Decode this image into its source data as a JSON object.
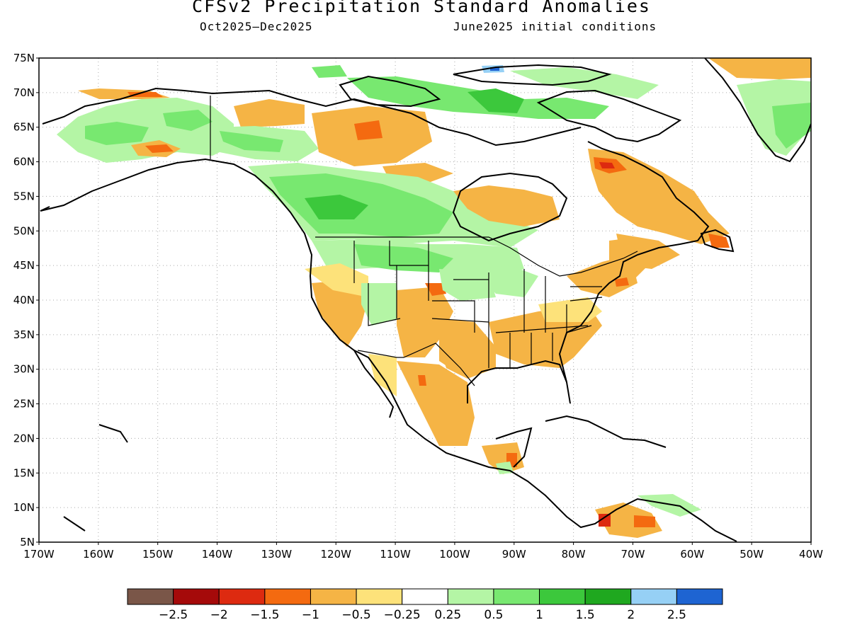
{
  "title": "CFSv2 Precipitation Standard Anomalies",
  "subtitle_left": "Oct2025—Dec2025",
  "subtitle_right": "June2025 initial conditions",
  "lat_labels": [
    "75N",
    "70N",
    "65N",
    "60N",
    "55N",
    "50N",
    "45N",
    "40N",
    "35N",
    "30N",
    "25N",
    "20N",
    "15N",
    "10N",
    "5N"
  ],
  "lon_labels": [
    "170W",
    "160W",
    "150W",
    "140W",
    "130W",
    "120W",
    "110W",
    "100W",
    "90W",
    "80W",
    "70W",
    "60W",
    "50W",
    "40W"
  ],
  "colorbar": {
    "colors": [
      "#7a5648",
      "#a50a0a",
      "#dd2a10",
      "#f46a10",
      "#f5b445",
      "#fde27a",
      "#ffffff",
      "#b4f5a5",
      "#78e870",
      "#3cc83c",
      "#1fa81f",
      "#96d0f5",
      "#1e64d2"
    ],
    "labels": [
      "−2.5",
      "−2",
      "−1.5",
      "−1",
      "−0.5",
      "−0.25",
      "0.25",
      "0.5",
      "1",
      "1.5",
      "2",
      "2.5"
    ]
  },
  "anomaly_colors": {
    "dry_light": "#fde27a",
    "dry": "#f5b445",
    "dry_strong": "#f46a10",
    "dry_very_strong": "#dd2a10",
    "wet_light": "#b4f5a5",
    "wet": "#78e870",
    "wet_strong": "#3cc83c",
    "wet_very_strong": "#1fa81f",
    "wet_extreme": "#96d0f5",
    "wet_max": "#1e64d2"
  }
}
